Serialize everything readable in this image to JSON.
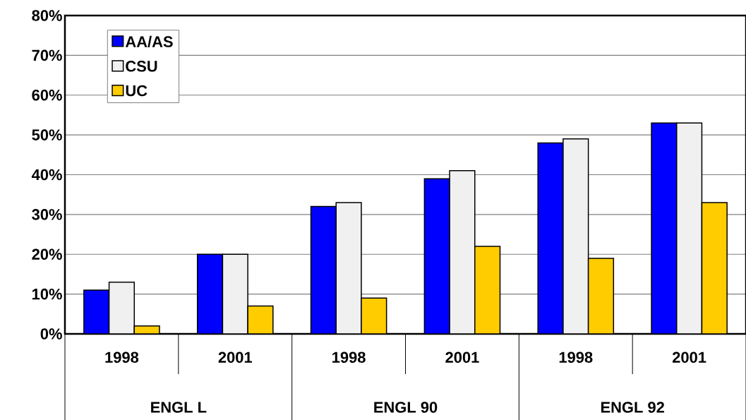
{
  "chart_data": {
    "type": "bar",
    "categories": [
      "1998",
      "2001",
      "1998",
      "2001",
      "1998",
      "2001"
    ],
    "series": [
      {
        "name": "AA/AS",
        "color": "#0000ff",
        "values": [
          11,
          20,
          32,
          39,
          48,
          53
        ]
      },
      {
        "name": "CSU",
        "color": "#f0f0f0",
        "values": [
          13,
          20,
          33,
          41,
          49,
          53
        ]
      },
      {
        "name": "UC",
        "color": "#ffcc00",
        "values": [
          2,
          7,
          9,
          22,
          19,
          33
        ]
      }
    ],
    "annotations": [
      "ENGL L",
      "ENGL 90",
      "ENGL 92"
    ],
    "ylim": [
      0,
      80
    ],
    "yticks": [
      {
        "value": 0,
        "label": "0%"
      },
      {
        "value": 10,
        "label": "10%"
      },
      {
        "value": 20,
        "label": "20%"
      },
      {
        "value": 30,
        "label": "30%"
      },
      {
        "value": 40,
        "label": "40%"
      },
      {
        "value": 50,
        "label": "50%"
      },
      {
        "value": 60,
        "label": "60%"
      },
      {
        "value": 70,
        "label": "70%"
      },
      {
        "value": 80,
        "label": "80%"
      }
    ],
    "grid": "y",
    "legend": "top left"
  }
}
